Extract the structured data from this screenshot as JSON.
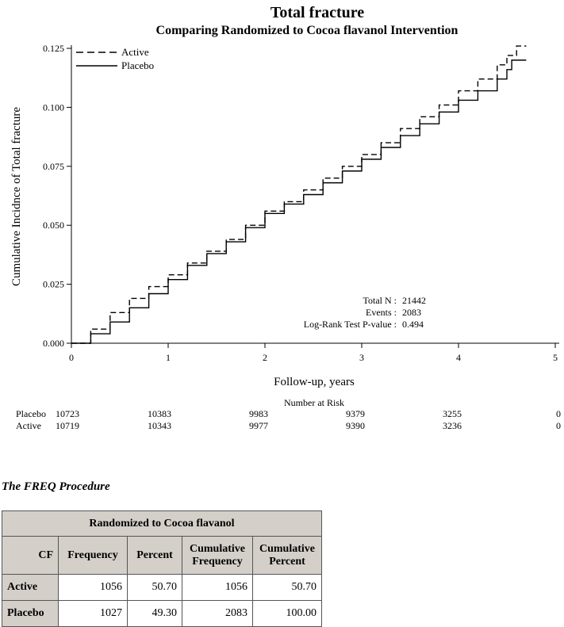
{
  "chart_data": {
    "type": "line",
    "title": "Total fracture",
    "subtitle": "Comparing Randomized to Cocoa flavanol Intervention",
    "xlabel": "Follow-up, years",
    "ylabel": "Cumulative Incidnce of  Total fracture",
    "xlim": [
      0,
      5
    ],
    "ylim": [
      0,
      0.125
    ],
    "x_ticks": [
      "0",
      "1",
      "2",
      "3",
      "4",
      "5"
    ],
    "y_ticks": [
      "0.000",
      "0.025",
      "0.050",
      "0.075",
      "0.100",
      "0.125"
    ],
    "legend_position": "top-left",
    "series": [
      {
        "name": "Active",
        "style": "dashed",
        "x": [
          0,
          0.2,
          0.4,
          0.6,
          0.8,
          1.0,
          1.2,
          1.4,
          1.6,
          1.8,
          2.0,
          2.2,
          2.4,
          2.6,
          2.8,
          3.0,
          3.2,
          3.4,
          3.6,
          3.8,
          4.0,
          4.2,
          4.4,
          4.5,
          4.6,
          4.7
        ],
        "y": [
          0,
          0.006,
          0.013,
          0.019,
          0.024,
          0.029,
          0.034,
          0.039,
          0.044,
          0.05,
          0.056,
          0.06,
          0.065,
          0.07,
          0.075,
          0.08,
          0.085,
          0.091,
          0.096,
          0.101,
          0.107,
          0.112,
          0.118,
          0.122,
          0.126,
          0.126
        ]
      },
      {
        "name": "Placebo",
        "style": "solid",
        "x": [
          0,
          0.2,
          0.4,
          0.6,
          0.8,
          1.0,
          1.2,
          1.4,
          1.6,
          1.8,
          2.0,
          2.2,
          2.4,
          2.6,
          2.8,
          3.0,
          3.2,
          3.4,
          3.6,
          3.8,
          4.0,
          4.2,
          4.4,
          4.5,
          4.55,
          4.7
        ],
        "y": [
          0,
          0.004,
          0.009,
          0.015,
          0.021,
          0.027,
          0.033,
          0.038,
          0.043,
          0.049,
          0.055,
          0.059,
          0.063,
          0.068,
          0.073,
          0.078,
          0.083,
          0.088,
          0.093,
          0.098,
          0.103,
          0.107,
          0.112,
          0.116,
          0.12,
          0.12
        ]
      }
    ],
    "annotations": [
      {
        "label": "Total N :",
        "value": "21442"
      },
      {
        "label": "Events :",
        "value": "2083"
      },
      {
        "label": "Log-Rank Test P-value :",
        "value": "0.494"
      }
    ],
    "risk_table": {
      "title": "Number at Risk",
      "rows": [
        {
          "name": "Placebo",
          "values": [
            "10723",
            "10383",
            "9983",
            "9379",
            "3255",
            "0"
          ]
        },
        {
          "name": "Active",
          "values": [
            "10719",
            "10343",
            "9977",
            "9390",
            "3236",
            "0"
          ]
        }
      ]
    }
  },
  "freq": {
    "title": "The FREQ Procedure",
    "table_title": "Randomized to Cocoa flavanol",
    "headers": [
      "CF",
      "Frequency",
      "Percent",
      "Cumulative Frequency",
      "Cumulative Percent"
    ],
    "rows": [
      {
        "label": "Active",
        "frequency": "1056",
        "percent": "50.70",
        "cum_frequency": "1056",
        "cum_percent": "50.70"
      },
      {
        "label": "Placebo",
        "frequency": "1027",
        "percent": "49.30",
        "cum_frequency": "2083",
        "cum_percent": "100.00"
      }
    ]
  }
}
